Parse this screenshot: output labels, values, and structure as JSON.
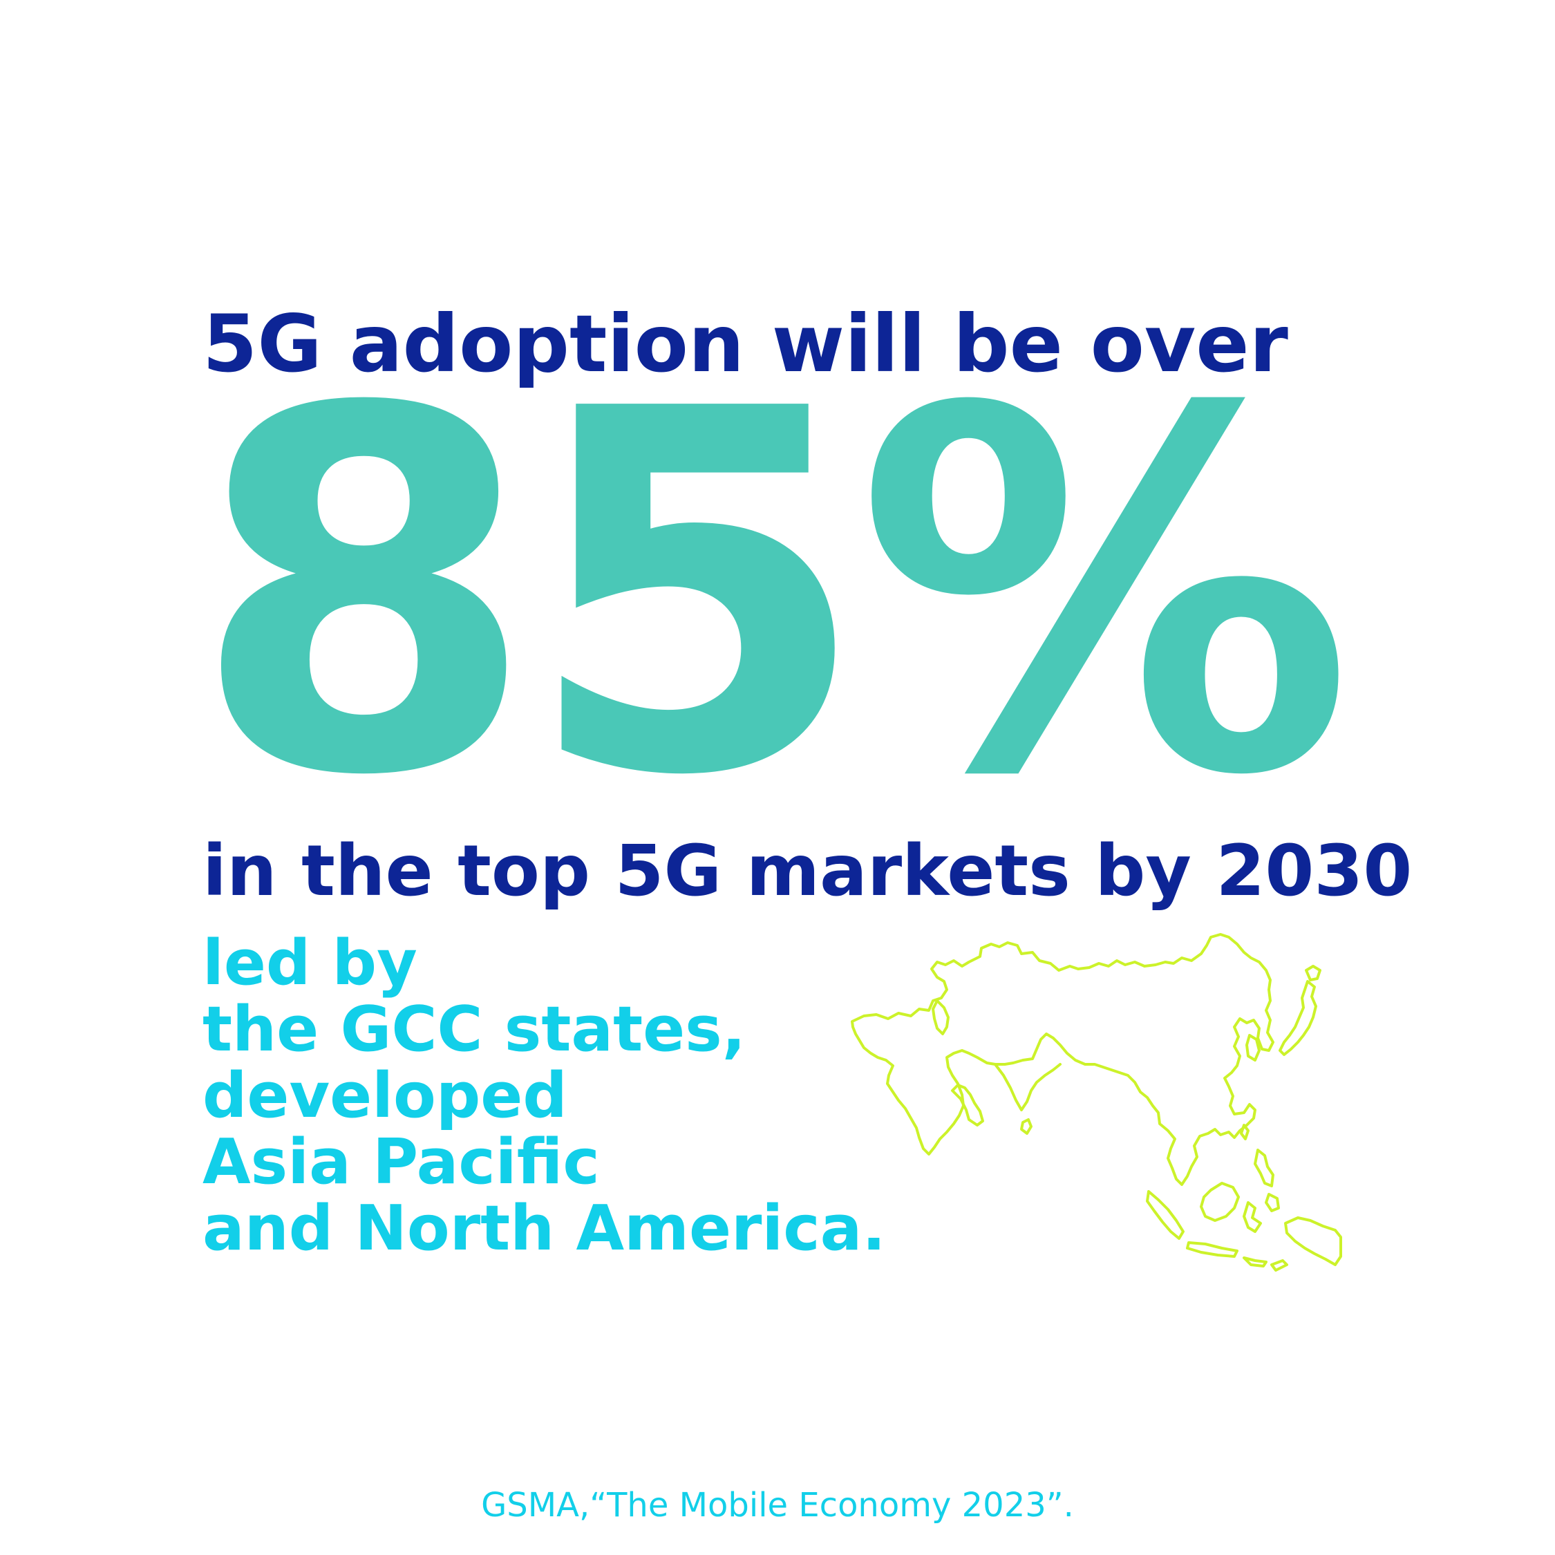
{
  "colors": {
    "background": "#ffffff",
    "navy": "#0d2596",
    "teal": "#4ac8b7",
    "cyan": "#12cfe9",
    "lime": "#ccf22a"
  },
  "headline": "5G adoption will be over",
  "stat": "85%",
  "subline": "in the top 5G markets by 2030",
  "led_by_lines": [
    "led by",
    "the GCC states,",
    "developed",
    "Asia Pacific",
    "and North America."
  ],
  "map_icon": "asia-outline-map-icon",
  "source": "GSMA,“The Mobile Economy 2023”."
}
